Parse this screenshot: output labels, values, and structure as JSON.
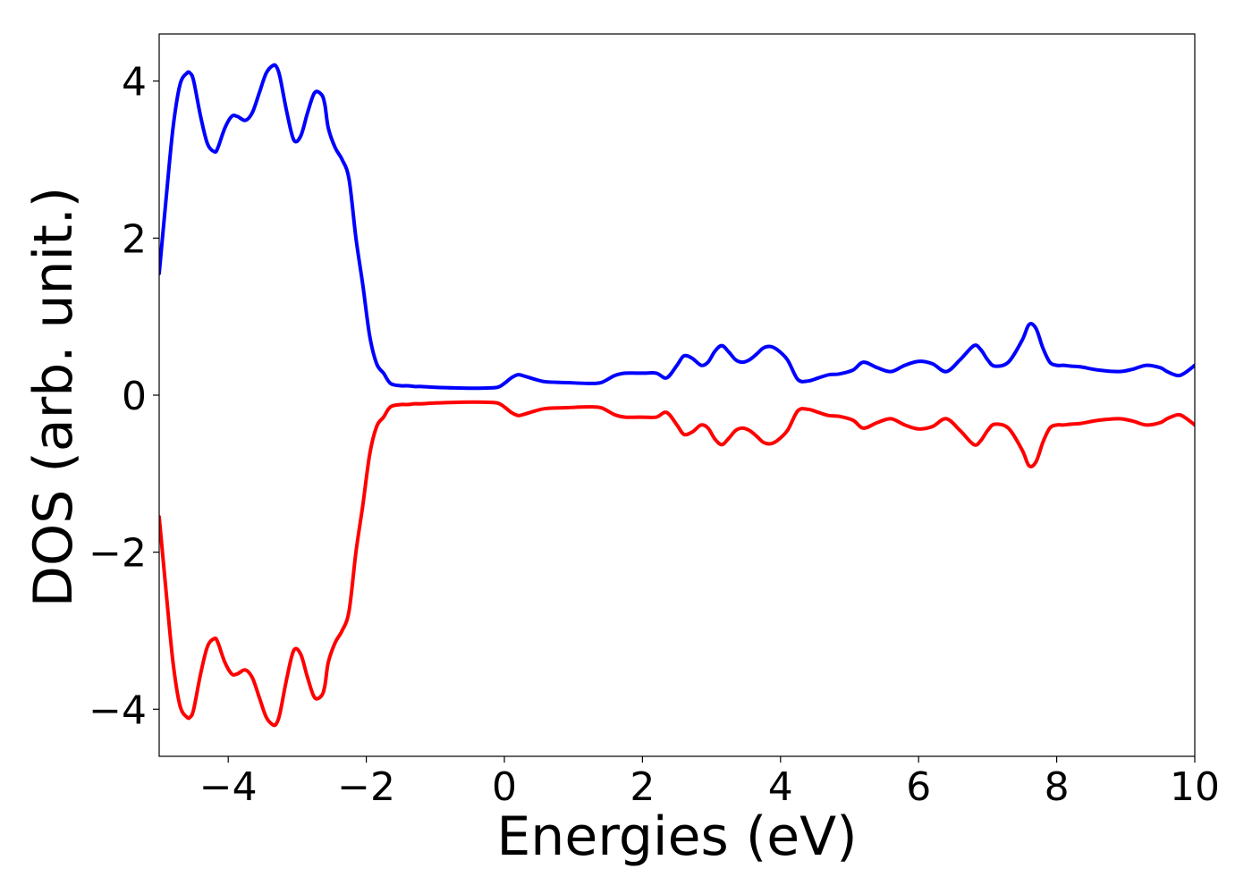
{
  "chart_data": {
    "type": "line",
    "title": "",
    "xlabel": "Energies (eV)",
    "ylabel": "DOS (arb. unit.)",
    "xlim": [
      -5,
      10
    ],
    "ylim": [
      -4.6,
      4.6
    ],
    "xticks": [
      -4,
      -2,
      0,
      2,
      4,
      6,
      8,
      10
    ],
    "xtick_labels": [
      "−4",
      "−2",
      "0",
      "2",
      "4",
      "6",
      "8",
      "10"
    ],
    "yticks": [
      -4,
      -2,
      0,
      2,
      4
    ],
    "ytick_labels": [
      "−4",
      "−2",
      "0",
      "2",
      "4"
    ],
    "grid": false,
    "legend": "none",
    "colors": [
      "#0000ff",
      "#ff0000"
    ],
    "series": [
      {
        "x": [
          -5,
          -4.9,
          -4.8,
          -4.7,
          -4.6,
          -4.55,
          -4.5,
          -4.4,
          -4.3,
          -4.2,
          -4.15,
          -4.05,
          -3.95,
          -3.87,
          -3.75,
          -3.65,
          -3.55,
          -3.45,
          -3.35,
          -3.3,
          -3.25,
          -3.15,
          -3.05,
          -2.95,
          -2.85,
          -2.75,
          -2.65,
          -2.6,
          -2.55,
          -2.45,
          -2.35,
          -2.25,
          -2.15,
          -2.05,
          -1.95,
          -1.85,
          -1.75,
          -1.65,
          -1.5,
          -1.4,
          -1.3,
          -1.2,
          -1,
          -0.6,
          -0.3,
          -0.1,
          0,
          0.1,
          0.2,
          0.3,
          0.45,
          0.6,
          0.9,
          1.2,
          1.4,
          1.6,
          1.75,
          2,
          2.2,
          2.35,
          2.5,
          2.6,
          2.72,
          2.85,
          2.95,
          3.05,
          3.15,
          3.25,
          3.35,
          3.45,
          3.55,
          3.65,
          3.75,
          3.85,
          3.95,
          4.1,
          4.25,
          4.4,
          4.55,
          4.7,
          4.85,
          5.05,
          5.2,
          5.4,
          5.6,
          5.8,
          6,
          6.2,
          6.4,
          6.6,
          6.8,
          6.9,
          7,
          7.1,
          7.3,
          7.5,
          7.6,
          7.7,
          7.8,
          7.9,
          8,
          8.1,
          8.2,
          8.35,
          8.6,
          8.9,
          9.1,
          9.3,
          9.5,
          9.6,
          9.75,
          9.85,
          10
        ],
        "y": [
          1.55,
          2.5,
          3.4,
          3.95,
          4.1,
          4.1,
          4.0,
          3.55,
          3.2,
          3.1,
          3.15,
          3.4,
          3.55,
          3.55,
          3.5,
          3.6,
          3.85,
          4.1,
          4.2,
          4.18,
          4.05,
          3.6,
          3.25,
          3.3,
          3.6,
          3.85,
          3.83,
          3.7,
          3.4,
          3.15,
          3.0,
          2.75,
          2.0,
          1.4,
          0.75,
          0.4,
          0.28,
          0.15,
          0.12,
          0.12,
          0.11,
          0.11,
          0.1,
          0.09,
          0.09,
          0.1,
          0.15,
          0.22,
          0.26,
          0.24,
          0.2,
          0.17,
          0.16,
          0.15,
          0.16,
          0.25,
          0.28,
          0.28,
          0.28,
          0.22,
          0.38,
          0.5,
          0.47,
          0.38,
          0.42,
          0.56,
          0.63,
          0.55,
          0.45,
          0.42,
          0.45,
          0.52,
          0.6,
          0.62,
          0.58,
          0.45,
          0.2,
          0.18,
          0.22,
          0.26,
          0.27,
          0.32,
          0.42,
          0.35,
          0.3,
          0.38,
          0.43,
          0.4,
          0.3,
          0.45,
          0.63,
          0.58,
          0.45,
          0.37,
          0.42,
          0.7,
          0.9,
          0.85,
          0.6,
          0.42,
          0.38,
          0.38,
          0.37,
          0.36,
          0.32,
          0.3,
          0.33,
          0.38,
          0.35,
          0.3,
          0.25,
          0.28,
          0.38
        ]
      },
      {
        "x": [
          -5,
          -4.9,
          -4.8,
          -4.7,
          -4.6,
          -4.55,
          -4.5,
          -4.4,
          -4.3,
          -4.2,
          -4.15,
          -4.05,
          -3.95,
          -3.87,
          -3.75,
          -3.65,
          -3.55,
          -3.45,
          -3.35,
          -3.3,
          -3.25,
          -3.15,
          -3.05,
          -2.95,
          -2.85,
          -2.75,
          -2.65,
          -2.6,
          -2.55,
          -2.45,
          -2.35,
          -2.25,
          -2.15,
          -2.05,
          -1.95,
          -1.85,
          -1.75,
          -1.65,
          -1.5,
          -1.4,
          -1.3,
          -1.2,
          -1,
          -0.6,
          -0.3,
          -0.1,
          0,
          0.1,
          0.2,
          0.3,
          0.45,
          0.6,
          0.9,
          1.2,
          1.4,
          1.6,
          1.75,
          2,
          2.2,
          2.35,
          2.5,
          2.6,
          2.72,
          2.85,
          2.95,
          3.05,
          3.15,
          3.25,
          3.35,
          3.45,
          3.55,
          3.65,
          3.75,
          3.85,
          3.95,
          4.1,
          4.25,
          4.4,
          4.55,
          4.7,
          4.85,
          5.05,
          5.2,
          5.4,
          5.6,
          5.8,
          6,
          6.2,
          6.4,
          6.6,
          6.8,
          6.9,
          7,
          7.1,
          7.3,
          7.5,
          7.6,
          7.7,
          7.8,
          7.9,
          8,
          8.1,
          8.2,
          8.35,
          8.6,
          8.9,
          9.1,
          9.3,
          9.5,
          9.6,
          9.75,
          9.85,
          10
        ],
        "y": [
          -1.55,
          -2.5,
          -3.4,
          -3.95,
          -4.1,
          -4.1,
          -4.0,
          -3.55,
          -3.2,
          -3.1,
          -3.15,
          -3.4,
          -3.55,
          -3.55,
          -3.5,
          -3.6,
          -3.85,
          -4.1,
          -4.2,
          -4.18,
          -4.05,
          -3.6,
          -3.25,
          -3.3,
          -3.6,
          -3.85,
          -3.83,
          -3.7,
          -3.4,
          -3.15,
          -3.0,
          -2.75,
          -2.0,
          -1.4,
          -0.75,
          -0.4,
          -0.28,
          -0.15,
          -0.12,
          -0.12,
          -0.11,
          -0.11,
          -0.1,
          -0.09,
          -0.09,
          -0.1,
          -0.15,
          -0.22,
          -0.26,
          -0.24,
          -0.2,
          -0.17,
          -0.16,
          -0.15,
          -0.16,
          -0.25,
          -0.28,
          -0.28,
          -0.28,
          -0.22,
          -0.38,
          -0.5,
          -0.47,
          -0.38,
          -0.42,
          -0.56,
          -0.63,
          -0.55,
          -0.45,
          -0.42,
          -0.45,
          -0.52,
          -0.6,
          -0.62,
          -0.58,
          -0.45,
          -0.2,
          -0.18,
          -0.22,
          -0.26,
          -0.27,
          -0.32,
          -0.42,
          -0.35,
          -0.3,
          -0.38,
          -0.43,
          -0.4,
          -0.3,
          -0.45,
          -0.63,
          -0.58,
          -0.45,
          -0.37,
          -0.42,
          -0.7,
          -0.9,
          -0.85,
          -0.6,
          -0.42,
          -0.38,
          -0.38,
          -0.37,
          -0.36,
          -0.32,
          -0.3,
          -0.33,
          -0.38,
          -0.35,
          -0.3,
          -0.25,
          -0.28,
          -0.38
        ]
      }
    ]
  }
}
